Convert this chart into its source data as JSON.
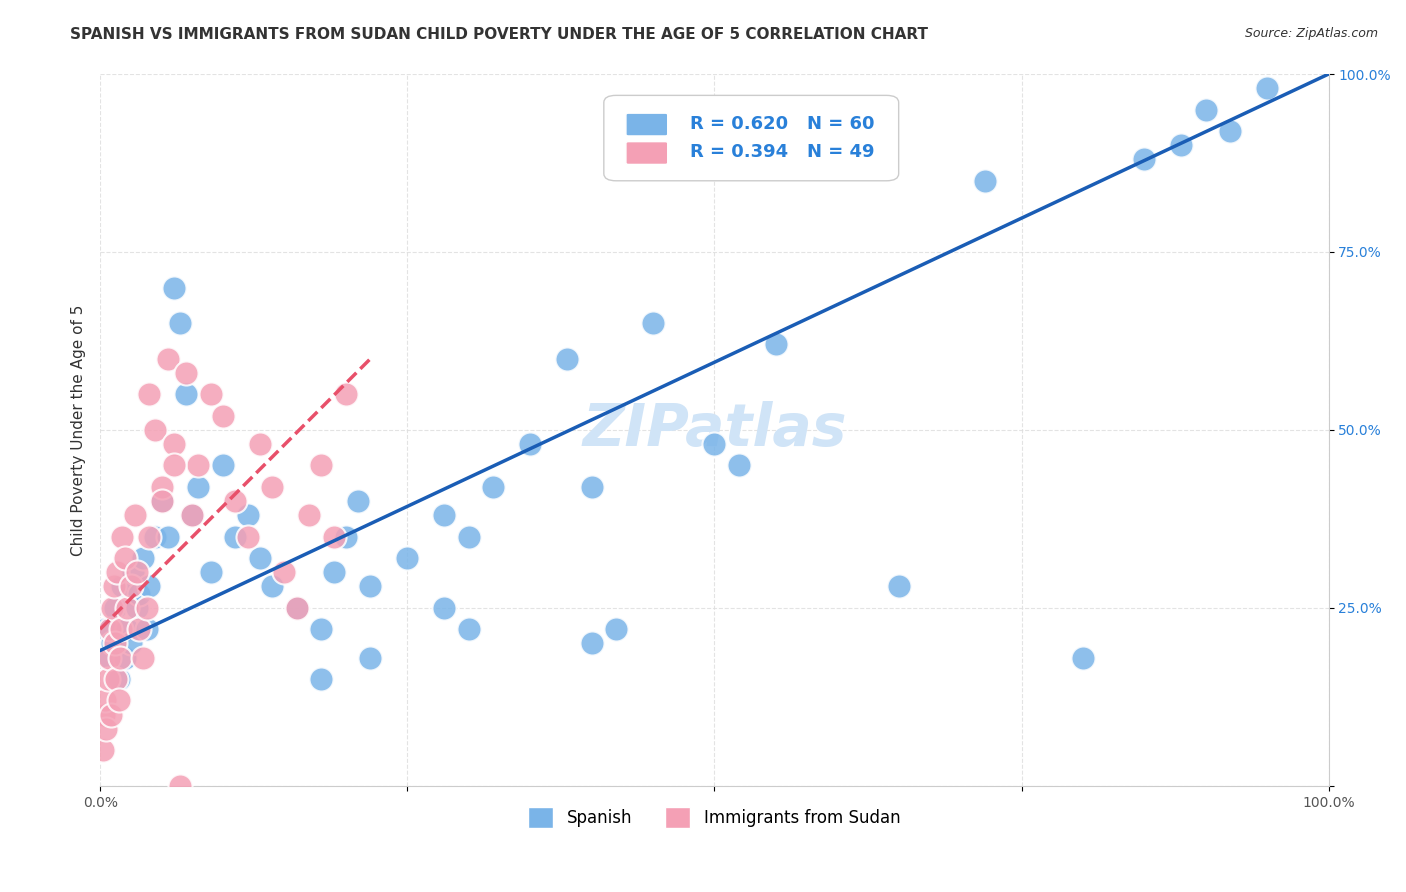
{
  "title": "SPANISH VS IMMIGRANTS FROM SUDAN CHILD POVERTY UNDER THE AGE OF 5 CORRELATION CHART",
  "source": "Source: ZipAtlas.com",
  "xlabel": "",
  "ylabel": "Child Poverty Under the Age of 5",
  "xlim": [
    0,
    1
  ],
  "ylim": [
    0,
    1
  ],
  "xticks": [
    0.0,
    0.25,
    0.5,
    0.75,
    1.0
  ],
  "yticks": [
    0.0,
    0.25,
    0.5,
    0.75,
    1.0
  ],
  "xticklabels": [
    "0.0%",
    "",
    "",
    "",
    "100.0%"
  ],
  "yticklabels_right": [
    "",
    "25.0%",
    "50.0%",
    "75.0%",
    "100.0%"
  ],
  "blue_color": "#7ab4e8",
  "pink_color": "#f4a0b5",
  "blue_line_color": "#1a5db5",
  "pink_line_color": "#e8506a",
  "watermark": "ZIPatlas",
  "legend_r_blue": "R = 0.620",
  "legend_n_blue": "N = 60",
  "legend_r_pink": "R = 0.394",
  "legend_n_pink": "N = 49",
  "spanish_x": [
    0.005,
    0.008,
    0.01,
    0.012,
    0.015,
    0.018,
    0.02,
    0.022,
    0.025,
    0.027,
    0.03,
    0.032,
    0.035,
    0.038,
    0.04,
    0.045,
    0.05,
    0.055,
    0.06,
    0.065,
    0.07,
    0.075,
    0.08,
    0.09,
    0.1,
    0.11,
    0.12,
    0.13,
    0.14,
    0.16,
    0.18,
    0.19,
    0.2,
    0.21,
    0.22,
    0.25,
    0.28,
    0.3,
    0.32,
    0.35,
    0.38,
    0.4,
    0.42,
    0.45,
    0.5,
    0.52,
    0.55,
    0.65,
    0.72,
    0.8,
    0.85,
    0.88,
    0.9,
    0.92,
    0.95,
    0.28,
    0.3,
    0.18,
    0.22,
    0.4
  ],
  "spanish_y": [
    0.22,
    0.18,
    0.2,
    0.25,
    0.15,
    0.28,
    0.18,
    0.22,
    0.2,
    0.3,
    0.25,
    0.27,
    0.32,
    0.22,
    0.28,
    0.35,
    0.4,
    0.35,
    0.7,
    0.65,
    0.55,
    0.38,
    0.42,
    0.3,
    0.45,
    0.35,
    0.38,
    0.32,
    0.28,
    0.25,
    0.22,
    0.3,
    0.35,
    0.4,
    0.28,
    0.32,
    0.38,
    0.35,
    0.42,
    0.48,
    0.6,
    0.2,
    0.22,
    0.65,
    0.48,
    0.45,
    0.62,
    0.28,
    0.85,
    0.18,
    0.88,
    0.9,
    0.95,
    0.92,
    0.98,
    0.25,
    0.22,
    0.15,
    0.18,
    0.42
  ],
  "sudan_x": [
    0.002,
    0.003,
    0.004,
    0.005,
    0.006,
    0.007,
    0.008,
    0.009,
    0.01,
    0.011,
    0.012,
    0.013,
    0.014,
    0.015,
    0.016,
    0.017,
    0.018,
    0.02,
    0.022,
    0.025,
    0.028,
    0.03,
    0.032,
    0.035,
    0.038,
    0.04,
    0.045,
    0.05,
    0.055,
    0.06,
    0.065,
    0.07,
    0.075,
    0.08,
    0.09,
    0.1,
    0.11,
    0.12,
    0.13,
    0.14,
    0.15,
    0.16,
    0.17,
    0.18,
    0.19,
    0.2,
    0.04,
    0.05,
    0.06
  ],
  "sudan_y": [
    0.05,
    0.1,
    0.12,
    0.08,
    0.15,
    0.18,
    0.22,
    0.1,
    0.25,
    0.28,
    0.2,
    0.15,
    0.3,
    0.12,
    0.18,
    0.22,
    0.35,
    0.32,
    0.25,
    0.28,
    0.38,
    0.3,
    0.22,
    0.18,
    0.25,
    0.55,
    0.5,
    0.42,
    0.6,
    0.48,
    0.0,
    0.58,
    0.38,
    0.45,
    0.55,
    0.52,
    0.4,
    0.35,
    0.48,
    0.42,
    0.3,
    0.25,
    0.38,
    0.45,
    0.35,
    0.55,
    0.35,
    0.4,
    0.45
  ],
  "blue_trend_x": [
    0.0,
    1.0
  ],
  "blue_trend_y": [
    0.19,
    1.0
  ],
  "pink_trend_x": [
    0.0,
    0.22
  ],
  "pink_trend_y": [
    0.22,
    0.6
  ],
  "grid_color": "#dddddd",
  "background_color": "#ffffff",
  "title_fontsize": 11,
  "axis_label_fontsize": 11,
  "tick_fontsize": 10,
  "legend_fontsize": 13,
  "watermark_fontsize": 42,
  "watermark_color": "#d0e4f7",
  "source_fontsize": 9
}
